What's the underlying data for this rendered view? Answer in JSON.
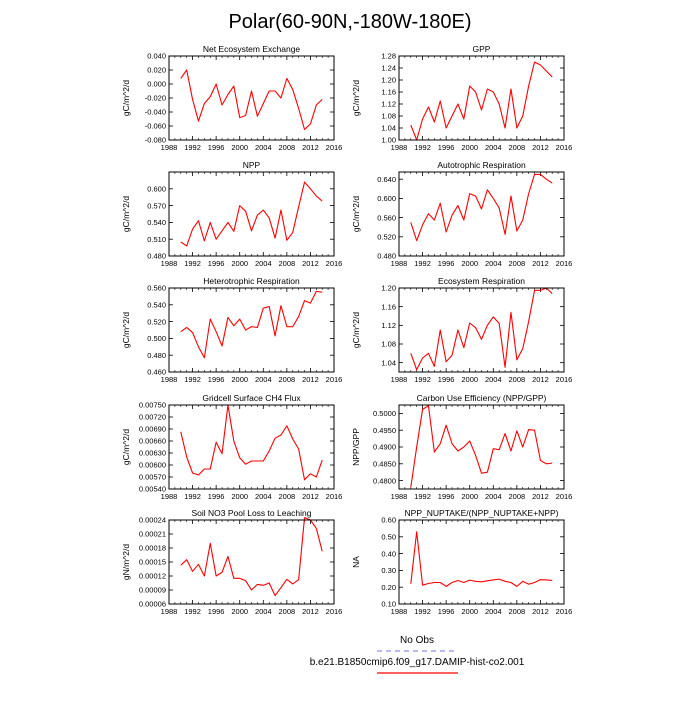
{
  "main_title": "Polar(60-90N,-180W-180E)",
  "legend": {
    "obs_label": "No Obs",
    "model_label": "b.e21.B1850cmip6.f09_g17.DAMIP-hist-co2.001",
    "obs_color": "#8c8cf0",
    "model_color": "#ff0000"
  },
  "chart_data": [
    {
      "type": "line",
      "title": "Net Ecosystem Exchange",
      "ylabel": "gC/m^2/d",
      "xlim": [
        1988,
        2016
      ],
      "ylim": [
        -0.08,
        0.04
      ],
      "xticks": [
        1988,
        1992,
        1996,
        2000,
        2004,
        2008,
        2012,
        2016
      ],
      "yticks": [
        "-0.080",
        "-0.060",
        "-0.040",
        "-0.020",
        "0.000",
        "0.020",
        "0.040"
      ],
      "series": [
        {
          "color": "#ff0000",
          "x": [
            1990,
            1991,
            1992,
            1993,
            1994,
            1995,
            1996,
            1997,
            1998,
            1999,
            2000,
            2001,
            2002,
            2003,
            2004,
            2005,
            2006,
            2007,
            2008,
            2009,
            2010,
            2011,
            2012,
            2013,
            2014
          ],
          "y": [
            0.008,
            0.02,
            -0.022,
            -0.053,
            -0.028,
            -0.018,
            0.0,
            -0.03,
            -0.015,
            -0.003,
            -0.048,
            -0.045,
            -0.01,
            -0.046,
            -0.028,
            -0.01,
            -0.01,
            -0.02,
            0.008,
            -0.008,
            -0.035,
            -0.065,
            -0.057,
            -0.03,
            -0.022
          ]
        }
      ]
    },
    {
      "type": "line",
      "title": "GPP",
      "ylabel": "gC/m^2/d",
      "xlim": [
        1988,
        2016
      ],
      "ylim": [
        1.0,
        1.28
      ],
      "xticks": [
        1988,
        1992,
        1996,
        2000,
        2004,
        2008,
        2012,
        2016
      ],
      "yticks": [
        "1.00",
        "1.04",
        "1.08",
        "1.12",
        "1.16",
        "1.20",
        "1.24",
        "1.28"
      ],
      "series": [
        {
          "color": "#ff0000",
          "x": [
            1990,
            1991,
            1992,
            1993,
            1994,
            1995,
            1996,
            1997,
            1998,
            1999,
            2000,
            2001,
            2002,
            2003,
            2004,
            2005,
            2006,
            2007,
            2008,
            2009,
            2010,
            2011,
            2012,
            2013,
            2014
          ],
          "y": [
            1.05,
            1.0,
            1.07,
            1.11,
            1.06,
            1.13,
            1.04,
            1.08,
            1.12,
            1.07,
            1.18,
            1.16,
            1.1,
            1.17,
            1.16,
            1.12,
            1.04,
            1.17,
            1.04,
            1.08,
            1.18,
            1.26,
            1.25,
            1.23,
            1.21
          ]
        }
      ]
    },
    {
      "type": "line",
      "title": "NPP",
      "ylabel": "gC/m^2/d",
      "xlim": [
        1988,
        2016
      ],
      "ylim": [
        0.48,
        0.63
      ],
      "xticks": [
        1988,
        1992,
        1996,
        2000,
        2004,
        2008,
        2012,
        2016
      ],
      "yticks": [
        "0.480",
        "0.510",
        "0.540",
        "0.570",
        "0.600"
      ],
      "series": [
        {
          "color": "#ff0000",
          "x": [
            1990,
            1991,
            1992,
            1993,
            1994,
            1995,
            1996,
            1997,
            1998,
            1999,
            2000,
            2001,
            2002,
            2003,
            2004,
            2005,
            2006,
            2007,
            2008,
            2009,
            2010,
            2011,
            2012,
            2013,
            2014
          ],
          "y": [
            0.505,
            0.498,
            0.528,
            0.543,
            0.507,
            0.54,
            0.51,
            0.525,
            0.54,
            0.524,
            0.57,
            0.56,
            0.525,
            0.553,
            0.562,
            0.548,
            0.512,
            0.562,
            0.508,
            0.522,
            0.568,
            0.612,
            0.6,
            0.587,
            0.578
          ]
        }
      ]
    },
    {
      "type": "line",
      "title": "Autotrophic Respiration",
      "ylabel": "gC/m^2/d",
      "xlim": [
        1988,
        2016
      ],
      "ylim": [
        0.48,
        0.655
      ],
      "xticks": [
        1988,
        1992,
        1996,
        2000,
        2004,
        2008,
        2012,
        2016
      ],
      "yticks": [
        "0.480",
        "0.520",
        "0.560",
        "0.600",
        "0.640"
      ],
      "series": [
        {
          "color": "#ff0000",
          "x": [
            1990,
            1991,
            1992,
            1993,
            1994,
            1995,
            1996,
            1997,
            1998,
            1999,
            2000,
            2001,
            2002,
            2003,
            2004,
            2005,
            2006,
            2007,
            2008,
            2009,
            2010,
            2011,
            2012,
            2013,
            2014
          ],
          "y": [
            0.55,
            0.512,
            0.545,
            0.568,
            0.555,
            0.59,
            0.53,
            0.565,
            0.585,
            0.555,
            0.61,
            0.605,
            0.578,
            0.618,
            0.6,
            0.58,
            0.525,
            0.605,
            0.532,
            0.555,
            0.61,
            0.65,
            0.65,
            0.64,
            0.632
          ]
        }
      ]
    },
    {
      "type": "line",
      "title": "Heterotrophic Respiration",
      "ylabel": "gC/m^2/d",
      "xlim": [
        1988,
        2016
      ],
      "ylim": [
        0.46,
        0.56
      ],
      "xticks": [
        1988,
        1992,
        1996,
        2000,
        2004,
        2008,
        2012,
        2016
      ],
      "yticks": [
        "0.460",
        "0.480",
        "0.500",
        "0.520",
        "0.540",
        "0.560"
      ],
      "series": [
        {
          "color": "#ff0000",
          "x": [
            1990,
            1991,
            1992,
            1993,
            1994,
            1995,
            1996,
            1997,
            1998,
            1999,
            2000,
            2001,
            2002,
            2003,
            2004,
            2005,
            2006,
            2007,
            2008,
            2009,
            2010,
            2011,
            2012,
            2013,
            2014
          ],
          "y": [
            0.508,
            0.513,
            0.507,
            0.49,
            0.477,
            0.523,
            0.508,
            0.491,
            0.525,
            0.515,
            0.523,
            0.51,
            0.514,
            0.513,
            0.536,
            0.538,
            0.503,
            0.539,
            0.514,
            0.514,
            0.526,
            0.545,
            0.542,
            0.556,
            0.555
          ]
        }
      ]
    },
    {
      "type": "line",
      "title": "Ecosystem Respiration",
      "ylabel": "gC/m^2/d",
      "xlim": [
        1988,
        2016
      ],
      "ylim": [
        1.02,
        1.2
      ],
      "xticks": [
        1988,
        1992,
        1996,
        2000,
        2004,
        2008,
        2012,
        2016
      ],
      "yticks": [
        "1.04",
        "1.08",
        "1.12",
        "1.16",
        "1.20"
      ],
      "series": [
        {
          "color": "#ff0000",
          "x": [
            1990,
            1991,
            1992,
            1993,
            1994,
            1995,
            1996,
            1997,
            1998,
            1999,
            2000,
            2001,
            2002,
            2003,
            2004,
            2005,
            2006,
            2007,
            2008,
            2009,
            2010,
            2011,
            2012,
            2013,
            2014
          ],
          "y": [
            1.06,
            1.025,
            1.05,
            1.06,
            1.032,
            1.11,
            1.042,
            1.056,
            1.11,
            1.072,
            1.125,
            1.115,
            1.09,
            1.12,
            1.138,
            1.124,
            1.03,
            1.148,
            1.046,
            1.07,
            1.128,
            1.195,
            1.195,
            1.2,
            1.188
          ]
        }
      ]
    },
    {
      "type": "line",
      "title": "Gridcell Surface CH4 Flux",
      "ylabel": "gC/m^2/d",
      "xlim": [
        1988,
        2016
      ],
      "ylim": [
        0.0054,
        0.0075
      ],
      "xticks": [
        1988,
        1992,
        1996,
        2000,
        2004,
        2008,
        2012,
        2016
      ],
      "yticks": [
        "0.00540",
        "0.00570",
        "0.00600",
        "0.00630",
        "0.00660",
        "0.00690",
        "0.00720",
        "0.00750"
      ],
      "series": [
        {
          "color": "#ff0000",
          "x": [
            1990,
            1991,
            1992,
            1993,
            1994,
            1995,
            1996,
            1997,
            1998,
            1999,
            2000,
            2001,
            2002,
            2003,
            2004,
            2005,
            2006,
            2007,
            2008,
            2009,
            2010,
            2011,
            2012,
            2013,
            2014
          ],
          "y": [
            0.00683,
            0.0062,
            0.0058,
            0.00575,
            0.0059,
            0.0059,
            0.00657,
            0.00628,
            0.0075,
            0.0066,
            0.00618,
            0.00602,
            0.0061,
            0.0061,
            0.0061,
            0.00635,
            0.00667,
            0.00675,
            0.00698,
            0.00665,
            0.0064,
            0.00563,
            0.00578,
            0.0057,
            0.00612
          ]
        }
      ]
    },
    {
      "type": "line",
      "title": "Carbon Use Efficiency (NPP/GPP)",
      "ylabel": "NPP/GPP",
      "xlim": [
        1988,
        2016
      ],
      "ylim": [
        0.4775,
        0.5025
      ],
      "xticks": [
        1988,
        1992,
        1996,
        2000,
        2004,
        2008,
        2012,
        2016
      ],
      "yticks": [
        "0.4800",
        "0.4850",
        "0.4900",
        "0.4950",
        "0.5000"
      ],
      "series": [
        {
          "color": "#ff0000",
          "x": [
            1990,
            1991,
            1992,
            1993,
            1994,
            1995,
            1996,
            1997,
            1998,
            1999,
            2000,
            2001,
            2002,
            2003,
            2004,
            2005,
            2006,
            2007,
            2008,
            2009,
            2010,
            2011,
            2012,
            2013,
            2014
          ],
          "y": [
            0.478,
            0.49,
            0.5012,
            0.5023,
            0.4885,
            0.491,
            0.4965,
            0.491,
            0.4888,
            0.49,
            0.4918,
            0.4875,
            0.4822,
            0.4825,
            0.4895,
            0.4892,
            0.494,
            0.4888,
            0.4948,
            0.49,
            0.4952,
            0.495,
            0.486,
            0.485,
            0.4852
          ]
        }
      ]
    },
    {
      "type": "line",
      "title": "Soil NO3 Pool Loss to Leaching",
      "ylabel": "gN/m^2/d",
      "xlim": [
        1988,
        2016
      ],
      "ylim": [
        6e-05,
        0.00024
      ],
      "xticks": [
        1988,
        1992,
        1996,
        2000,
        2004,
        2008,
        2012,
        2016
      ],
      "yticks": [
        "0.00006",
        "0.00009",
        "0.00012",
        "0.00015",
        "0.00018",
        "0.00021",
        "0.00024"
      ],
      "series": [
        {
          "color": "#ff0000",
          "x": [
            1990,
            1991,
            1992,
            1993,
            1994,
            1995,
            1996,
            1997,
            1998,
            1999,
            2000,
            2001,
            2002,
            2003,
            2004,
            2005,
            2006,
            2007,
            2008,
            2009,
            2010,
            2011,
            2012,
            2013,
            2014
          ],
          "y": [
            0.000143,
            0.000155,
            0.00013,
            0.000145,
            0.00012,
            0.00019,
            0.00012,
            0.000128,
            0.000162,
            0.000115,
            0.000115,
            0.00011,
            9e-05,
            0.000102,
            0.0001,
            0.000105,
            7.8e-05,
            9.5e-05,
            0.000113,
            0.000103,
            0.000112,
            0.000245,
            0.00024,
            0.000222,
            0.000173
          ]
        }
      ]
    },
    {
      "type": "line",
      "title": "NPP_NUPTAKE/(NPP_NUPTAKE+NPP)",
      "ylabel": "NA",
      "xlim": [
        1988,
        2016
      ],
      "ylim": [
        0.1,
        0.6
      ],
      "xticks": [
        1988,
        1992,
        1996,
        2000,
        2004,
        2008,
        2012,
        2016
      ],
      "yticks": [
        "0.10",
        "0.20",
        "0.30",
        "0.40",
        "0.50",
        "0.60"
      ],
      "series": [
        {
          "color": "#ff0000",
          "x": [
            1990,
            1991,
            1992,
            1993,
            1994,
            1995,
            1996,
            1997,
            1998,
            1999,
            2000,
            2001,
            2002,
            2003,
            2004,
            2005,
            2006,
            2007,
            2008,
            2009,
            2010,
            2011,
            2012,
            2013,
            2014
          ],
          "y": [
            0.22,
            0.53,
            0.212,
            0.222,
            0.228,
            0.228,
            0.205,
            0.228,
            0.24,
            0.228,
            0.242,
            0.235,
            0.232,
            0.238,
            0.243,
            0.248,
            0.235,
            0.228,
            0.205,
            0.235,
            0.218,
            0.228,
            0.245,
            0.243,
            0.24
          ]
        }
      ]
    }
  ]
}
